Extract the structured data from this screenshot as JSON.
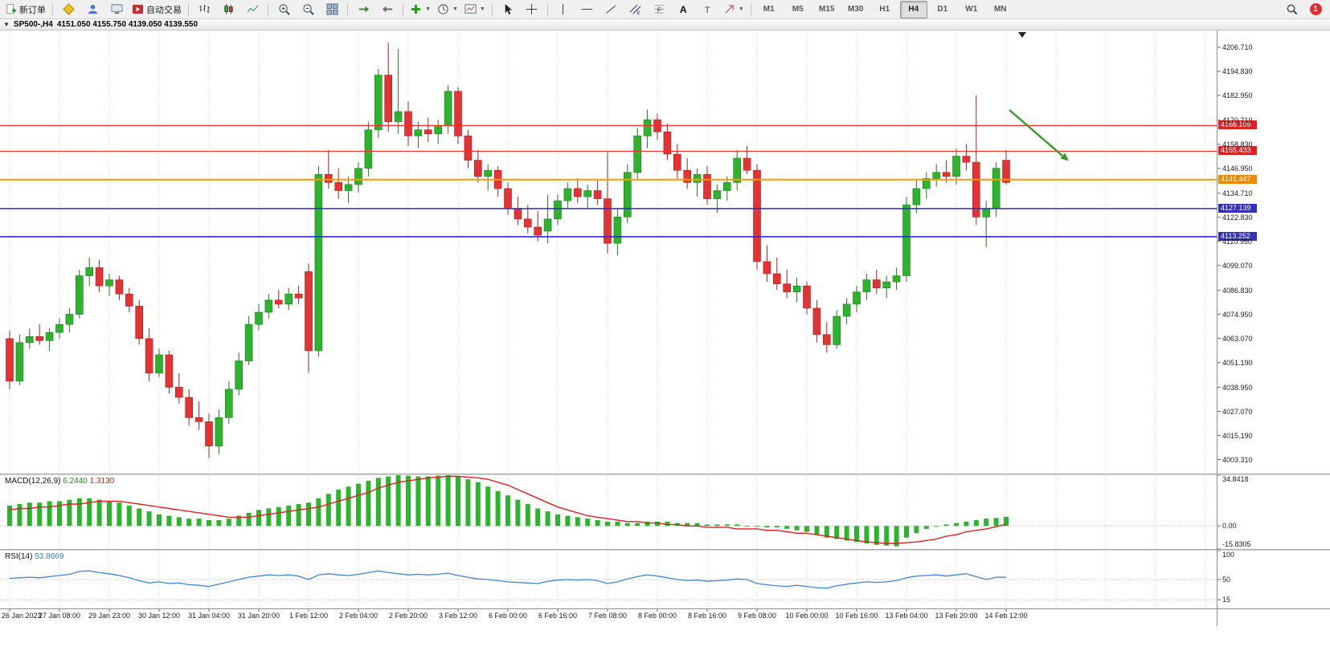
{
  "toolbar": {
    "new_order_label": "新订单",
    "auto_trading_label": "自动交易",
    "timeframes": [
      "M1",
      "M5",
      "M15",
      "M30",
      "H1",
      "H4",
      "D1",
      "W1",
      "MN"
    ],
    "active_timeframe": "H4",
    "notification_badge": "1"
  },
  "chart": {
    "title": "SP500-,H4",
    "ohlc_line": "4151.050 4155.750 4139.050 4139.550",
    "price_axis_labels": [
      "4206.710",
      "4194.830",
      "4182.950",
      "4170.710",
      "4158.830",
      "4146.950",
      "4134.710",
      "4122.830",
      "4110.950",
      "4099.070",
      "4086.830",
      "4074.950",
      "4063.070",
      "4051.190",
      "4038.950",
      "4027.070",
      "4015.190",
      "4003.310"
    ],
    "time_axis_labels": [
      "26 Jan 2023",
      "27 Jan 08:00",
      "29 Jan 23:00",
      "30 Jan 12:00",
      "31 Jan 04:00",
      "31 Jan 20:00",
      "1 Feb 12:00",
      "2 Feb 04:00",
      "2 Feb 20:00",
      "3 Feb 12:00",
      "6 Feb 00:00",
      "6 Feb 16:00",
      "7 Feb 08:00",
      "8 Feb 00:00",
      "8 Feb 16:00",
      "9 Feb 08:00",
      "10 Feb 00:00",
      "10 Feb 16:00",
      "13 Feb 04:00",
      "13 Feb 20:00",
      "14 Feb 12:00"
    ],
    "hlines": [
      {
        "label": "4168.109",
        "value": 4168.109,
        "line_color": "#ff2a2a",
        "box_color": "#dd2222",
        "width": 1.2
      },
      {
        "label": "4155.433",
        "value": 4155.433,
        "line_color": "#ff2a2a",
        "box_color": "#dd2222",
        "width": 1.2
      },
      {
        "label": "4141.447",
        "value": 4141.447,
        "line_color": "#ff9900",
        "box_color": "#ee8800",
        "width": 2
      },
      {
        "label": "4127.139",
        "value": 4127.139,
        "line_color": "#2a2ad8",
        "box_color": "#3030b8",
        "width": 1.6
      },
      {
        "label": "4113.252",
        "value": 4113.252,
        "line_color": "#2a2ad8",
        "box_color": "#3030b8",
        "width": 1.6
      }
    ],
    "annotation_arrow": {
      "color": "#339922",
      "from": [
        1256,
        137
      ],
      "to": [
        1330,
        200
      ]
    }
  },
  "chart_data": {
    "type": "candlestick",
    "title": "SP500-,H4",
    "symbol": "SP500-",
    "period": "H4",
    "up_color": "#2db32d",
    "down_color": "#e23434",
    "up_border": "#1d7a1d",
    "down_border": "#a81f1f",
    "price_range": [
      3996.4,
      4215.0
    ],
    "candles": [
      [
        4063,
        4067,
        4038,
        4042
      ],
      [
        4042,
        4065,
        4040,
        4061
      ],
      [
        4061,
        4068,
        4058,
        4064
      ],
      [
        4064,
        4070,
        4060,
        4062
      ],
      [
        4062,
        4068,
        4057,
        4066
      ],
      [
        4066,
        4073,
        4063,
        4070
      ],
      [
        4070,
        4078,
        4066,
        4075
      ],
      [
        4075,
        4097,
        4073,
        4094
      ],
      [
        4094,
        4103,
        4089,
        4098
      ],
      [
        4098,
        4102,
        4086,
        4089
      ],
      [
        4089,
        4095,
        4084,
        4092
      ],
      [
        4092,
        4094,
        4082,
        4085
      ],
      [
        4085,
        4088,
        4076,
        4079
      ],
      [
        4079,
        4082,
        4060,
        4063
      ],
      [
        4063,
        4068,
        4042,
        4046
      ],
      [
        4046,
        4058,
        4044,
        4055
      ],
      [
        4055,
        4057,
        4036,
        4039
      ],
      [
        4039,
        4046,
        4031,
        4034
      ],
      [
        4034,
        4038,
        4020,
        4024
      ],
      [
        4024,
        4032,
        4018,
        4022
      ],
      [
        4022,
        4026,
        4004,
        4010
      ],
      [
        4010,
        4028,
        4006,
        4024
      ],
      [
        4024,
        4042,
        4021,
        4038
      ],
      [
        4038,
        4056,
        4035,
        4052
      ],
      [
        4052,
        4074,
        4050,
        4070
      ],
      [
        4070,
        4080,
        4067,
        4076
      ],
      [
        4076,
        4085,
        4073,
        4082
      ],
      [
        4082,
        4087,
        4078,
        4080
      ],
      [
        4080,
        4088,
        4077,
        4085
      ],
      [
        4085,
        4089,
        4080,
        4083
      ],
      [
        4096,
        4100,
        4046,
        4057
      ],
      [
        4057,
        4148,
        4054,
        4144
      ],
      [
        4144,
        4156,
        4137,
        4140
      ],
      [
        4140,
        4147,
        4132,
        4136
      ],
      [
        4136,
        4143,
        4130,
        4139
      ],
      [
        4139,
        4150,
        4135,
        4147
      ],
      [
        4147,
        4170,
        4143,
        4166
      ],
      [
        4166,
        4196,
        4162,
        4193
      ],
      [
        4193,
        4209,
        4165,
        4170
      ],
      [
        4170,
        4206,
        4164,
        4175
      ],
      [
        4175,
        4180,
        4158,
        4163
      ],
      [
        4163,
        4170,
        4157,
        4166
      ],
      [
        4166,
        4172,
        4160,
        4164
      ],
      [
        4164,
        4171,
        4159,
        4168
      ],
      [
        4168,
        4188,
        4164,
        4185
      ],
      [
        4185,
        4187,
        4159,
        4163
      ],
      [
        4163,
        4166,
        4147,
        4151
      ],
      [
        4151,
        4156,
        4140,
        4143
      ],
      [
        4143,
        4149,
        4136,
        4146
      ],
      [
        4146,
        4148,
        4133,
        4137
      ],
      [
        4137,
        4140,
        4124,
        4127
      ],
      [
        4127,
        4133,
        4119,
        4122
      ],
      [
        4122,
        4129,
        4115,
        4118
      ],
      [
        4118,
        4126,
        4111,
        4114
      ],
      [
        4116,
        4134,
        4110,
        4122
      ],
      [
        4122,
        4134,
        4119,
        4131
      ],
      [
        4131,
        4140,
        4127,
        4137
      ],
      [
        4137,
        4142,
        4130,
        4133
      ],
      [
        4133,
        4139,
        4127,
        4136
      ],
      [
        4136,
        4141,
        4129,
        4132
      ],
      [
        4132,
        4155,
        4105,
        4110
      ],
      [
        4110,
        4127,
        4104,
        4123
      ],
      [
        4123,
        4149,
        4120,
        4145
      ],
      [
        4145,
        4167,
        4142,
        4163
      ],
      [
        4163,
        4176,
        4157,
        4171
      ],
      [
        4171,
        4174,
        4161,
        4165
      ],
      [
        4165,
        4169,
        4151,
        4154
      ],
      [
        4154,
        4159,
        4142,
        4146
      ],
      [
        4146,
        4152,
        4137,
        4140
      ],
      [
        4140,
        4147,
        4133,
        4144
      ],
      [
        4144,
        4148,
        4129,
        4132
      ],
      [
        4132,
        4139,
        4125,
        4136
      ],
      [
        4136,
        4143,
        4131,
        4140
      ],
      [
        4140,
        4156,
        4136,
        4152
      ],
      [
        4152,
        4158,
        4144,
        4146
      ],
      [
        4146,
        4149,
        4097,
        4101
      ],
      [
        4101,
        4109,
        4091,
        4095
      ],
      [
        4095,
        4103,
        4087,
        4090
      ],
      [
        4090,
        4097,
        4083,
        4086
      ],
      [
        4086,
        4093,
        4081,
        4089
      ],
      [
        4089,
        4091,
        4075,
        4078
      ],
      [
        4078,
        4082,
        4061,
        4065
      ],
      [
        4065,
        4071,
        4056,
        4060
      ],
      [
        4060,
        4077,
        4058,
        4074
      ],
      [
        4074,
        4083,
        4070,
        4080
      ],
      [
        4080,
        4089,
        4076,
        4086
      ],
      [
        4086,
        4095,
        4082,
        4092
      ],
      [
        4092,
        4097,
        4085,
        4088
      ],
      [
        4088,
        4094,
        4083,
        4091
      ],
      [
        4091,
        4098,
        4087,
        4094
      ],
      [
        4094,
        4133,
        4091,
        4129
      ],
      [
        4129,
        4141,
        4125,
        4137
      ],
      [
        4137,
        4145,
        4132,
        4142
      ],
      [
        4142,
        4149,
        4138,
        4145
      ],
      [
        4145,
        4151,
        4140,
        4143
      ],
      [
        4143,
        4157,
        4139,
        4153
      ],
      [
        4153,
        4159,
        4146,
        4150
      ],
      [
        4150,
        4183,
        4119,
        4123
      ],
      [
        4123,
        4131,
        4108,
        4127
      ],
      [
        4127,
        4150,
        4123,
        4147
      ],
      [
        4151,
        4156,
        4139,
        4140
      ]
    ],
    "indicators": {
      "macd": {
        "label": "MACD(12,26,9)",
        "main_value": "6.2440",
        "signal_value": "1.3130",
        "scale_labels": [
          "34.8418",
          "0.00",
          "-15.8305"
        ],
        "range": [
          34.8418,
          -15.8305
        ],
        "hist_color": "#2db32d",
        "signal_color": "#e02020",
        "histogram": [
          14,
          15,
          16,
          16,
          17,
          17,
          18,
          19,
          19,
          18,
          17,
          16,
          14,
          12,
          10,
          8,
          7,
          6,
          5,
          5,
          4,
          4,
          5,
          7,
          9,
          11,
          12,
          13,
          14,
          15,
          16,
          19,
          22,
          25,
          27,
          29,
          31,
          33,
          34,
          34.8,
          34.5,
          34,
          34,
          34.5,
          34.8,
          34,
          32,
          30,
          27,
          24,
          21,
          18,
          15,
          12,
          10,
          8,
          7,
          6,
          5,
          4,
          3,
          3,
          2,
          2,
          3,
          3,
          3,
          2,
          2,
          2,
          1,
          1,
          1,
          1,
          0,
          0,
          -1,
          -1,
          -2,
          -3,
          -4,
          -6,
          -8,
          -9,
          -10,
          -11,
          -12,
          -13,
          -13.5,
          -14,
          -8,
          -5,
          -2,
          0,
          1,
          2,
          3,
          4,
          5,
          5.5,
          6.244
        ],
        "signal": [
          11,
          12,
          12,
          13,
          13,
          14,
          15,
          15,
          16,
          17,
          17,
          17,
          16,
          15,
          14,
          13,
          12,
          11,
          10,
          9,
          8,
          7,
          6,
          6,
          6,
          7,
          8,
          9,
          10,
          11,
          12,
          13,
          15,
          17,
          19,
          21,
          23,
          26,
          28,
          30,
          31,
          32,
          33,
          33.5,
          34,
          34,
          33.5,
          33,
          32,
          30,
          28,
          25,
          22,
          19,
          16,
          13,
          11,
          9,
          7,
          6,
          5,
          4,
          3,
          3,
          2,
          2,
          1,
          1,
          0,
          0,
          -1,
          -1,
          -1,
          -2,
          -2,
          -2,
          -3,
          -3,
          -4,
          -5,
          -5,
          -6,
          -7,
          -8,
          -9,
          -10,
          -11,
          -11.5,
          -12,
          -12,
          -11.5,
          -11,
          -10,
          -9,
          -7,
          -6,
          -4,
          -3,
          -2,
          -0.5,
          1.313
        ]
      },
      "rsi": {
        "label": "RSI(14)",
        "value": "53.8669",
        "scale_labels": [
          "100",
          "50",
          "15"
        ],
        "range": [
          0,
          100
        ],
        "levels": [
          50,
          15
        ],
        "color": "#3e86d8",
        "values": [
          52,
          53,
          54,
          53,
          55,
          57,
          59,
          64,
          65,
          62,
          60,
          57,
          53,
          48,
          44,
          46,
          43,
          44,
          41,
          40,
          38,
          42,
          46,
          50,
          54,
          56,
          58,
          57,
          58,
          56,
          50,
          58,
          60,
          58,
          57,
          59,
          62,
          65,
          62,
          60,
          58,
          59,
          58,
          59,
          61,
          57,
          54,
          51,
          50,
          48,
          46,
          45,
          44,
          43,
          47,
          49,
          50,
          49,
          50,
          48,
          43,
          46,
          51,
          55,
          58,
          56,
          53,
          50,
          48,
          49,
          47,
          48,
          49,
          51,
          50,
          43,
          41,
          39,
          38,
          40,
          38,
          36,
          35,
          39,
          42,
          44,
          46,
          45,
          46,
          48,
          53,
          56,
          57,
          58,
          56,
          58,
          60,
          55,
          50,
          54,
          53.87
        ]
      }
    }
  }
}
